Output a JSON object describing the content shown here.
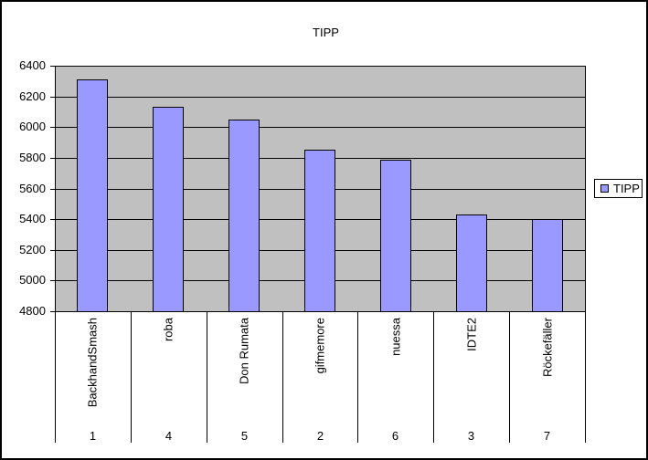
{
  "chart_data": {
    "type": "bar",
    "title": "TIPP",
    "legend": {
      "label": "TIPP",
      "position": "right"
    },
    "categories": [
      {
        "name": "BackhandSmash",
        "rank": "1"
      },
      {
        "name": "roba",
        "rank": "4"
      },
      {
        "name": "Don Rumata",
        "rank": "5"
      },
      {
        "name": "gifmemore",
        "rank": "2"
      },
      {
        "name": "nuessa",
        "rank": "6"
      },
      {
        "name": "IDTE2",
        "rank": "3"
      },
      {
        "name": "Röckefäller",
        "rank": "7"
      }
    ],
    "series": [
      {
        "name": "TIPP",
        "values": [
          6310,
          6135,
          6050,
          5850,
          5790,
          5430,
          5400
        ]
      }
    ],
    "y_axis": {
      "min": 4800,
      "max": 6400,
      "step": 200,
      "tick_labels": [
        "4800",
        "5000",
        "5200",
        "5400",
        "5600",
        "5800",
        "6000",
        "6200",
        "6400"
      ]
    },
    "grid": true,
    "layout": "single-series column chart, plot area gray, legend outside right",
    "colors": {
      "bar_fill": "#9999FF",
      "plot_background": "#C0C0C0",
      "chart_background": "#FFFFFF",
      "line": "#000000"
    }
  }
}
